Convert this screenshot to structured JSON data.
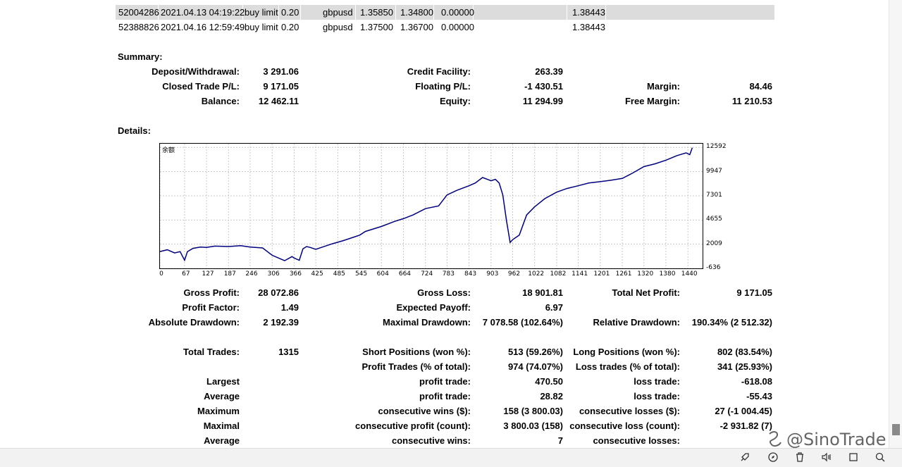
{
  "orders": [
    {
      "ticket": "52004286",
      "time": "2021.04.13 04:19:22",
      "type": "buy limit",
      "size": "0.20",
      "item": "gbpusd",
      "price": "1.35850",
      "sl": "1.34800",
      "tp": "0.00000",
      "market": "1.38443"
    },
    {
      "ticket": "52388826",
      "time": "2021.04.16 12:59:49",
      "type": "buy limit",
      "size": "0.20",
      "item": "gbpusd",
      "price": "1.37500",
      "sl": "1.36700",
      "tp": "0.00000",
      "market": "1.38443"
    }
  ],
  "summary": {
    "heading": "Summary:",
    "deposit_label": "Deposit/Withdrawal:",
    "deposit": "3 291.06",
    "closed_pl_label": "Closed Trade P/L:",
    "closed_pl": "9 171.05",
    "balance_label": "Balance:",
    "balance": "12 462.11",
    "credit_label": "Credit Facility:",
    "credit": "263.39",
    "floating_label": "Floating P/L:",
    "floating": "-1 430.51",
    "equity_label": "Equity:",
    "equity": "11 294.99",
    "margin_label": "Margin:",
    "margin": "84.46",
    "free_margin_label": "Free Margin:",
    "free_margin": "11 210.53"
  },
  "details": {
    "heading": "Details:",
    "rows": [
      {
        "l1": "Gross Profit:",
        "v1": "28 072.86",
        "l2": "Gross Loss:",
        "v2": "18 901.81",
        "l3": "Total Net Profit:",
        "v3": "9 171.05"
      },
      {
        "l1": "Profit Factor:",
        "v1": "1.49",
        "l2": "Expected Payoff:",
        "v2": "6.97",
        "l3": "",
        "v3": ""
      },
      {
        "l1": "Absolute Drawdown:",
        "v1": "2 192.39",
        "l2": "Maximal Drawdown:",
        "v2": "7 078.58 (102.64%)",
        "l3": "Relative Drawdown:",
        "v3": "190.34% (2 512.32)"
      },
      {
        "l1": "",
        "v1": "",
        "l2": "",
        "v2": "",
        "l3": "",
        "v3": ""
      },
      {
        "l1": "Total Trades:",
        "v1": "1315",
        "l2": "Short Positions (won %):",
        "v2": "513 (59.26%)",
        "l3": "Long Positions (won %):",
        "v3": "802 (83.54%)"
      },
      {
        "l1": "",
        "v1": "",
        "l2": "Profit Trades (% of total):",
        "v2": "974 (74.07%)",
        "l3": "Loss trades (% of total):",
        "v3": "341 (25.93%)"
      },
      {
        "l1": "Largest",
        "v1": "",
        "l2": "profit trade:",
        "v2": "470.50",
        "l3": "loss trade:",
        "v3": "-618.08"
      },
      {
        "l1": "Average",
        "v1": "",
        "l2": "profit trade:",
        "v2": "28.82",
        "l3": "loss trade:",
        "v3": "-55.43"
      },
      {
        "l1": "Maximum",
        "v1": "",
        "l2": "consecutive wins ($):",
        "v2": "158 (3 800.03)",
        "l3": "consecutive losses ($):",
        "v3": "27 (-1 004.45)"
      },
      {
        "l1": "Maximal",
        "v1": "",
        "l2": "consecutive profit (count):",
        "v2": "3 800.03 (158)",
        "l3": "consecutive loss (count):",
        "v3": "-2 931.82 (7)"
      },
      {
        "l1": "Average",
        "v1": "",
        "l2": "consecutive wins:",
        "v2": "7",
        "l3": "consecutive losses:",
        "v3": ""
      }
    ]
  },
  "chart_data": {
    "type": "line",
    "title": "",
    "legend_label": "余额",
    "xlabel": "",
    "ylabel": "",
    "x_ticks": [
      0,
      67,
      127,
      187,
      246,
      306,
      366,
      425,
      485,
      545,
      604,
      664,
      724,
      783,
      843,
      903,
      962,
      1022,
      1082,
      1141,
      1201,
      1261,
      1320,
      1380,
      1440
    ],
    "y_ticks": [
      12592,
      9947,
      7301,
      4655,
      2009,
      -636
    ],
    "xlim": [
      0,
      1480
    ],
    "ylim": [
      -636,
      13000
    ],
    "grid": true,
    "color": "#000080",
    "series": [
      {
        "x": [
          0,
          20,
          40,
          55,
          67,
          75,
          90,
          110,
          127,
          150,
          187,
          220,
          246,
          280,
          306,
          320,
          340,
          360,
          366,
          380,
          390,
          400,
          410,
          425,
          440,
          470,
          500,
          545,
          560,
          604,
          640,
          664,
          690,
          724,
          760,
          783,
          810,
          843,
          860,
          880,
          903,
          915,
          925,
          935,
          945,
          955,
          962,
          980,
          1000,
          1022,
          1050,
          1082,
          1110,
          1141,
          1170,
          1201,
          1230,
          1261,
          1290,
          1320,
          1350,
          1380,
          1410,
          1435,
          1445,
          1452
        ],
        "y": [
          1200,
          1400,
          1050,
          1200,
          250,
          1200,
          1550,
          1700,
          1650,
          1800,
          1750,
          1850,
          1700,
          1600,
          800,
          550,
          200,
          650,
          500,
          250,
          1500,
          1750,
          1650,
          1450,
          1650,
          2050,
          2400,
          3000,
          3400,
          3950,
          4500,
          4800,
          5200,
          5900,
          6200,
          7400,
          7900,
          8400,
          8700,
          9300,
          8950,
          9100,
          8700,
          7400,
          4600,
          2200,
          2500,
          3000,
          5200,
          6100,
          7000,
          7700,
          8100,
          8400,
          8700,
          8850,
          9000,
          9200,
          9800,
          10500,
          10800,
          11200,
          11700,
          12000,
          11800,
          12550
        ]
      }
    ]
  }
}
